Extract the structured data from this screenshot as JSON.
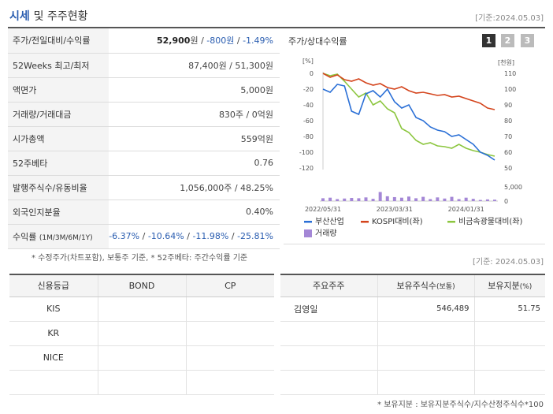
{
  "header": {
    "title_a": "시세",
    "title_b": "및 주주현황",
    "asof": "[기준:2024.05.03]"
  },
  "info_rows": [
    {
      "label": "주가/전일대비/수익률",
      "price": "52,900",
      "unit": "원",
      "change": "-800원",
      "rate": "-1.49%"
    },
    {
      "label": "52Weeks 최고/최저",
      "value": "87,400원 / 51,300원"
    },
    {
      "label": "액면가",
      "value": "5,000원"
    },
    {
      "label": "거래량/거래대금",
      "value": "830주 / 0억원"
    },
    {
      "label": "시가총액",
      "value": "559억원"
    },
    {
      "label": "52주베타",
      "value": "0.76"
    },
    {
      "label": "발행주식수/유동비율",
      "value": "1,056,000주 / 48.25%"
    },
    {
      "label": "외국인지분율",
      "value": "0.40%"
    },
    {
      "label": "수익률",
      "label_suffix": "(1M/3M/6M/1Y)",
      "r1": "-6.37%",
      "r2": "-10.64%",
      "r3": "-11.98%",
      "r4": "-25.81%"
    }
  ],
  "chart": {
    "title": "주가/상대수익률",
    "tabs": [
      "1",
      "2",
      "3"
    ],
    "left_unit": "[%]",
    "right_unit": "[천원]",
    "left_ticks": [
      "0",
      "-20",
      "-40",
      "-60",
      "-80",
      "-100",
      "-120"
    ],
    "right_ticks": [
      "110",
      "100",
      "90",
      "80",
      "70",
      "60",
      "50"
    ],
    "vol_tick": "5,000",
    "vol_zero": "0",
    "x_ticks": [
      "2022/05/31",
      "2023/03/31",
      "2024/01/31"
    ],
    "legend": [
      "부산산업",
      "KOSPI대비(좌)",
      "비금속광물대비(좌)",
      "거래량"
    ],
    "colors": {
      "stock": "#2a6fd6",
      "kospi": "#d4441c",
      "sector": "#8cc63f",
      "volume": "#a487d6"
    }
  },
  "chart_data": {
    "type": "line",
    "x": [
      "2022/05/31",
      "2022/06",
      "2022/07",
      "2022/08",
      "2022/09",
      "2022/10",
      "2022/11",
      "2022/12",
      "2023/01",
      "2023/02",
      "2023/03/31",
      "2023/04",
      "2023/05",
      "2023/06",
      "2023/07",
      "2023/08",
      "2023/09",
      "2023/10",
      "2023/11",
      "2023/12",
      "2024/01/31",
      "2024/02",
      "2024/03",
      "2024/04",
      "2024/05"
    ],
    "series": [
      {
        "name": "부산산업",
        "axis": "right",
        "values": [
          100,
          98,
          103,
          102,
          86,
          84,
          97,
          99,
          95,
          100,
          92,
          88,
          90,
          82,
          80,
          76,
          74,
          73,
          70,
          71,
          68,
          65,
          60,
          58,
          55
        ]
      },
      {
        "name": "KOSPI대비(좌)",
        "axis": "left",
        "values": [
          0,
          -5,
          -2,
          -8,
          -10,
          -7,
          -12,
          -15,
          -13,
          -18,
          -20,
          -17,
          -22,
          -25,
          -24,
          -26,
          -28,
          -27,
          -30,
          -29,
          -32,
          -35,
          -38,
          -44,
          -46
        ]
      },
      {
        "name": "비금속광물대비(좌)",
        "axis": "left",
        "values": [
          0,
          -3,
          -1,
          -10,
          -20,
          -30,
          -25,
          -40,
          -35,
          -45,
          -50,
          -70,
          -75,
          -85,
          -90,
          -88,
          -92,
          -93,
          -95,
          -90,
          -95,
          -98,
          -100,
          -103,
          -105
        ]
      }
    ],
    "volume": {
      "name": "거래량",
      "ylim": [
        0,
        5000
      ],
      "values": [
        1000,
        1200,
        700,
        900,
        1100,
        1000,
        1300,
        800,
        3200,
        1700,
        1400,
        1200,
        1600,
        1000,
        1500,
        700,
        1300,
        900,
        1500,
        700,
        1200,
        800,
        400,
        600,
        500
      ]
    },
    "ylim_left": [
      -120,
      0
    ],
    "ylim_right": [
      50,
      110
    ]
  },
  "note1": "* 수정주가(차트포함), 보통주 기준, * 52주베타: 주간수익률 기준",
  "asof_mid": "[기준: 2024.05.03]",
  "credit": {
    "headers": [
      "신용등급",
      "BOND",
      "CP"
    ],
    "rows": [
      [
        "KIS",
        "",
        ""
      ],
      [
        "KR",
        "",
        ""
      ],
      [
        "NICE",
        "",
        ""
      ],
      [
        "",
        "",
        ""
      ]
    ]
  },
  "holders": {
    "headers": [
      "주요주주",
      "보유주식수",
      "(보통)",
      "보유지분",
      "(%)"
    ],
    "rows": [
      [
        "김영일",
        "546,489",
        "51.75"
      ],
      [
        "",
        "",
        ""
      ],
      [
        "",
        "",
        ""
      ],
      [
        "",
        "",
        ""
      ]
    ]
  },
  "note2": "* 보유지분 : 보유지분주식수/지수산정주식수*100"
}
